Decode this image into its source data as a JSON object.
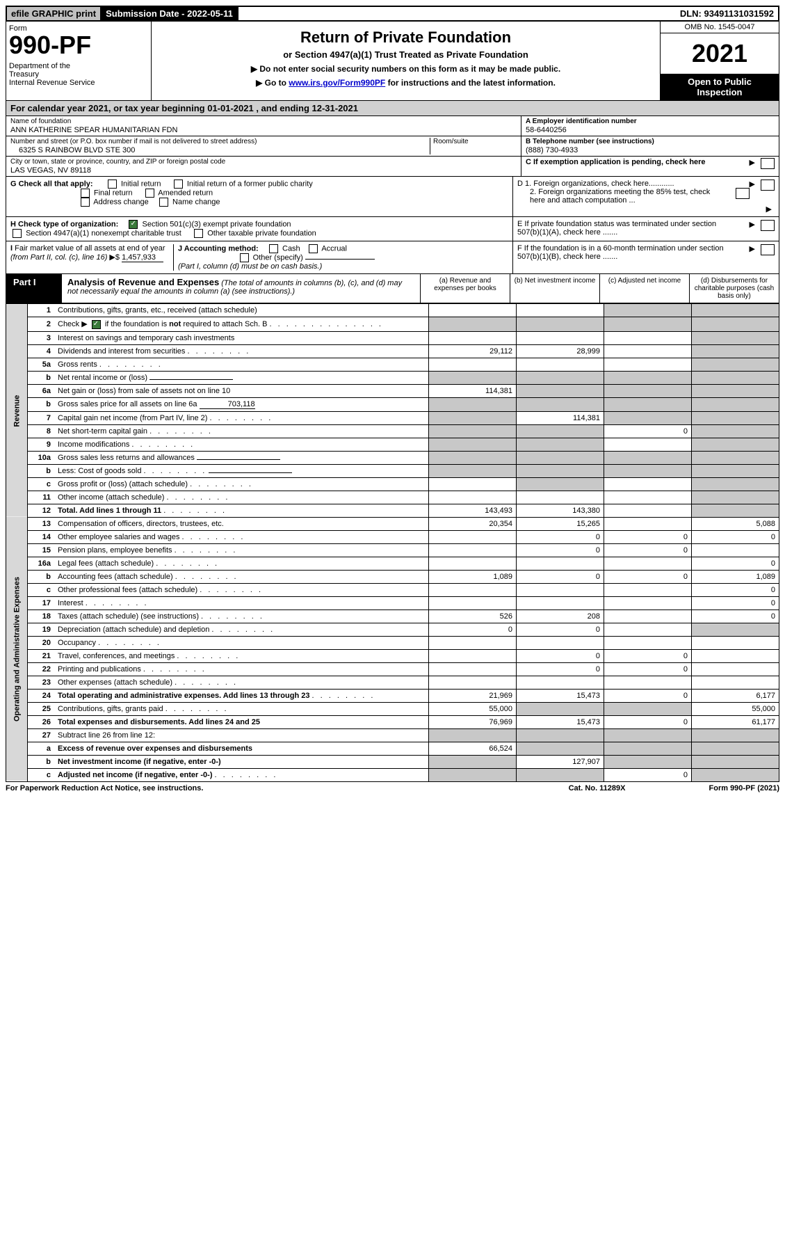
{
  "top": {
    "efile": "efile GRAPHIC print",
    "subdate_label": "Submission Date - 2022-05-11",
    "dln": "DLN: 93491131031592"
  },
  "header": {
    "form_label": "Form",
    "form_num": "990-PF",
    "dept": "Department of the Treasury\nInternal Revenue Service",
    "title": "Return of Private Foundation",
    "subtitle": "or Section 4947(a)(1) Trust Treated as Private Foundation",
    "instr1": "▶ Do not enter social security numbers on this form as it may be made public.",
    "instr2_pre": "▶ Go to ",
    "instr2_link": "www.irs.gov/Form990PF",
    "instr2_post": " for instructions and the latest information.",
    "omb": "OMB No. 1545-0047",
    "year": "2021",
    "open": "Open to Public Inspection"
  },
  "calyear": "For calendar year 2021, or tax year beginning 01-01-2021                 , and ending 12-31-2021",
  "info": {
    "name_label": "Name of foundation",
    "name": "ANN KATHERINE SPEAR HUMANITARIAN FDN",
    "addr_label": "Number and street (or P.O. box number if mail is not delivered to street address)",
    "addr": "6325 S RAINBOW BLVD STE 300",
    "room_label": "Room/suite",
    "city_label": "City or town, state or province, country, and ZIP or foreign postal code",
    "city": "LAS VEGAS, NV  89118",
    "ein_label": "A Employer identification number",
    "ein": "58-6440256",
    "phone_label": "B Telephone number (see instructions)",
    "phone": "(888) 730-4933",
    "c_label": "C If exemption application is pending, check here"
  },
  "checks": {
    "g_label": "G Check all that apply:",
    "g_opts": [
      "Initial return",
      "Initial return of a former public charity",
      "Final return",
      "Amended return",
      "Address change",
      "Name change"
    ],
    "h_label": "H Check type of organization:",
    "h_opt1": "Section 501(c)(3) exempt private foundation",
    "h_opt2": "Section 4947(a)(1) nonexempt charitable trust",
    "h_opt3": "Other taxable private foundation",
    "i_label": "I Fair market value of all assets at end of year (from Part II, col. (c), line 16)",
    "i_value": "1,457,933",
    "j_label": "J Accounting method:",
    "j_cash": "Cash",
    "j_accrual": "Accrual",
    "j_other": "Other (specify)",
    "j_note": "(Part I, column (d) must be on cash basis.)",
    "d1": "D 1. Foreign organizations, check here............",
    "d2": "2. Foreign organizations meeting the 85% test, check here and attach computation ...",
    "e": "E  If private foundation status was terminated under section 507(b)(1)(A), check here .......",
    "f": "F  If the foundation is in a 60-month termination under section 507(b)(1)(B), check here ......."
  },
  "part1": {
    "label": "Part I",
    "title": "Analysis of Revenue and Expenses",
    "note": "(The total of amounts in columns (b), (c), and (d) may not necessarily equal the amounts in column (a) (see instructions).)",
    "cols": [
      "(a)  Revenue and expenses per books",
      "(b)  Net investment income",
      "(c)  Adjusted net income",
      "(d)  Disbursements for charitable purposes (cash basis only)"
    ]
  },
  "sections": {
    "revenue": "Revenue",
    "opex": "Operating and Administrative Expenses"
  },
  "rows": [
    {
      "n": "1",
      "d": "Contributions, gifts, grants, etc., received (attach schedule)",
      "a": "",
      "b": "",
      "c": "shade",
      "e": "shade"
    },
    {
      "n": "2",
      "d": "Check ▶ ☑ if the foundation is not required to attach Sch. B",
      "dots": true,
      "a": "shade",
      "b": "shade",
      "c": "shade",
      "e": "shade"
    },
    {
      "n": "3",
      "d": "Interest on savings and temporary cash investments",
      "a": "",
      "b": "",
      "c": "",
      "e": "shade"
    },
    {
      "n": "4",
      "d": "Dividends and interest from securities",
      "dots": true,
      "a": "29,112",
      "b": "28,999",
      "c": "",
      "e": "shade"
    },
    {
      "n": "5a",
      "d": "Gross rents",
      "dots": true,
      "a": "",
      "b": "",
      "c": "",
      "e": "shade"
    },
    {
      "n": "b",
      "d": "Net rental income or (loss)",
      "inline": true,
      "a": "shade",
      "b": "shade",
      "c": "shade",
      "e": "shade"
    },
    {
      "n": "6a",
      "d": "Net gain or (loss) from sale of assets not on line 10",
      "a": "114,381",
      "b": "shade",
      "c": "shade",
      "e": "shade"
    },
    {
      "n": "b",
      "d": "Gross sales price for all assets on line 6a",
      "inline_val": "703,118",
      "a": "shade",
      "b": "shade",
      "c": "shade",
      "e": "shade"
    },
    {
      "n": "7",
      "d": "Capital gain net income (from Part IV, line 2)",
      "dots": true,
      "a": "shade",
      "b": "114,381",
      "c": "shade",
      "e": "shade"
    },
    {
      "n": "8",
      "d": "Net short-term capital gain",
      "dots": true,
      "a": "shade",
      "b": "shade",
      "c": "0",
      "e": "shade"
    },
    {
      "n": "9",
      "d": "Income modifications",
      "dots": true,
      "a": "shade",
      "b": "shade",
      "c": "",
      "e": "shade"
    },
    {
      "n": "10a",
      "d": "Gross sales less returns and allowances",
      "inline": true,
      "a": "shade",
      "b": "shade",
      "c": "shade",
      "e": "shade"
    },
    {
      "n": "b",
      "d": "Less: Cost of goods sold",
      "dots": true,
      "inline": true,
      "a": "shade",
      "b": "shade",
      "c": "shade",
      "e": "shade"
    },
    {
      "n": "c",
      "d": "Gross profit or (loss) (attach schedule)",
      "dots": true,
      "a": "",
      "b": "shade",
      "c": "",
      "e": "shade"
    },
    {
      "n": "11",
      "d": "Other income (attach schedule)",
      "dots": true,
      "a": "",
      "b": "",
      "c": "",
      "e": "shade"
    },
    {
      "n": "12",
      "d": "Total. Add lines 1 through 11",
      "dots": true,
      "bold": true,
      "a": "143,493",
      "b": "143,380",
      "c": "",
      "e": "shade"
    },
    {
      "n": "13",
      "d": "Compensation of officers, directors, trustees, etc.",
      "a": "20,354",
      "b": "15,265",
      "c": "",
      "e": "5,088"
    },
    {
      "n": "14",
      "d": "Other employee salaries and wages",
      "dots": true,
      "a": "",
      "b": "0",
      "c": "0",
      "e": "0"
    },
    {
      "n": "15",
      "d": "Pension plans, employee benefits",
      "dots": true,
      "a": "",
      "b": "0",
      "c": "0",
      "e": ""
    },
    {
      "n": "16a",
      "d": "Legal fees (attach schedule)",
      "dots": true,
      "a": "",
      "b": "",
      "c": "",
      "e": "0"
    },
    {
      "n": "b",
      "d": "Accounting fees (attach schedule)",
      "dots": true,
      "a": "1,089",
      "b": "0",
      "c": "0",
      "e": "1,089"
    },
    {
      "n": "c",
      "d": "Other professional fees (attach schedule)",
      "dots": true,
      "a": "",
      "b": "",
      "c": "",
      "e": "0"
    },
    {
      "n": "17",
      "d": "Interest",
      "dots": true,
      "a": "",
      "b": "",
      "c": "",
      "e": "0"
    },
    {
      "n": "18",
      "d": "Taxes (attach schedule) (see instructions)",
      "dots": true,
      "a": "526",
      "b": "208",
      "c": "",
      "e": "0"
    },
    {
      "n": "19",
      "d": "Depreciation (attach schedule) and depletion",
      "dots": true,
      "a": "0",
      "b": "0",
      "c": "",
      "e": "shade"
    },
    {
      "n": "20",
      "d": "Occupancy",
      "dots": true,
      "a": "",
      "b": "",
      "c": "",
      "e": ""
    },
    {
      "n": "21",
      "d": "Travel, conferences, and meetings",
      "dots": true,
      "a": "",
      "b": "0",
      "c": "0",
      "e": ""
    },
    {
      "n": "22",
      "d": "Printing and publications",
      "dots": true,
      "a": "",
      "b": "0",
      "c": "0",
      "e": ""
    },
    {
      "n": "23",
      "d": "Other expenses (attach schedule)",
      "dots": true,
      "a": "",
      "b": "",
      "c": "",
      "e": ""
    },
    {
      "n": "24",
      "d": "Total operating and administrative expenses. Add lines 13 through 23",
      "dots": true,
      "bold": true,
      "a": "21,969",
      "b": "15,473",
      "c": "0",
      "e": "6,177"
    },
    {
      "n": "25",
      "d": "Contributions, gifts, grants paid",
      "dots": true,
      "a": "55,000",
      "b": "shade",
      "c": "shade",
      "e": "55,000"
    },
    {
      "n": "26",
      "d": "Total expenses and disbursements. Add lines 24 and 25",
      "bold": true,
      "a": "76,969",
      "b": "15,473",
      "c": "0",
      "e": "61,177"
    },
    {
      "n": "27",
      "d": "Subtract line 26 from line 12:",
      "a": "shade",
      "b": "shade",
      "c": "shade",
      "e": "shade"
    },
    {
      "n": "a",
      "d": "Excess of revenue over expenses and disbursements",
      "bold": true,
      "a": "66,524",
      "b": "shade",
      "c": "shade",
      "e": "shade"
    },
    {
      "n": "b",
      "d": "Net investment income (if negative, enter -0-)",
      "bold": true,
      "a": "shade",
      "b": "127,907",
      "c": "shade",
      "e": "shade"
    },
    {
      "n": "c",
      "d": "Adjusted net income (if negative, enter -0-)",
      "dots": true,
      "bold": true,
      "a": "shade",
      "b": "shade",
      "c": "0",
      "e": "shade"
    }
  ],
  "footer": {
    "left": "For Paperwork Reduction Act Notice, see instructions.",
    "mid": "Cat. No. 11289X",
    "right": "Form 990-PF (2021)"
  },
  "colors": {
    "shade": "#c8c8c8",
    "link": "#0000cc",
    "black": "#000000",
    "check_green": "#3a7a3a"
  }
}
